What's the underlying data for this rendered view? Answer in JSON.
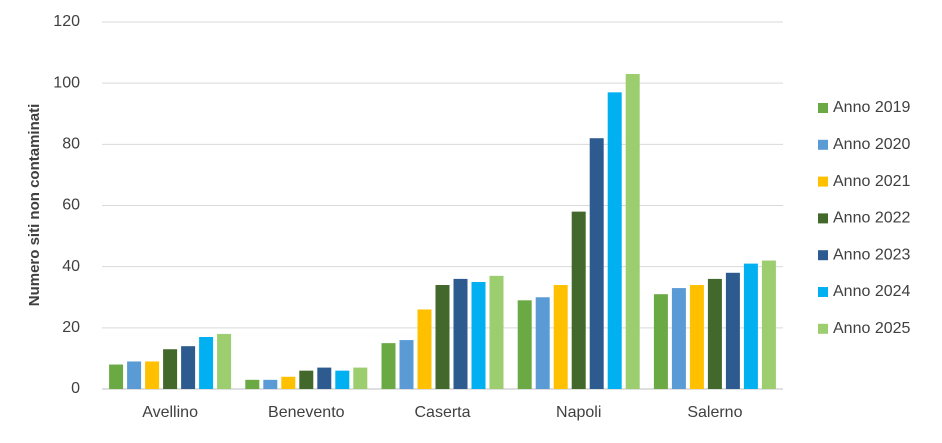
{
  "chart_data": {
    "type": "bar",
    "y_label": "Numero siti non contaminati",
    "categories": [
      "Avellino",
      "Benevento",
      "Caserta",
      "Napoli",
      "Salerno"
    ],
    "series": [
      {
        "name": "Anno 2019",
        "color": "#6ba944",
        "values": [
          8,
          3,
          15,
          29,
          31
        ]
      },
      {
        "name": "Anno 2020",
        "color": "#5b9bd5",
        "values": [
          9,
          3,
          16,
          30,
          33
        ]
      },
      {
        "name": "Anno 2021",
        "color": "#ffc000",
        "values": [
          9,
          4,
          26,
          34,
          34
        ]
      },
      {
        "name": "Anno 2022",
        "color": "#43682b",
        "values": [
          13,
          6,
          34,
          58,
          36
        ]
      },
      {
        "name": "Anno 2023",
        "color": "#2e5b8f",
        "values": [
          14,
          7,
          36,
          82,
          38
        ]
      },
      {
        "name": "Anno 2024",
        "color": "#00b0f0",
        "values": [
          17,
          6,
          35,
          97,
          41
        ]
      },
      {
        "name": "Anno 2025",
        "color": "#9ccd6e",
        "values": [
          18,
          7,
          37,
          103,
          42
        ]
      }
    ],
    "ylim": [
      0,
      120
    ],
    "yticks": [
      0,
      20,
      40,
      60,
      80,
      100,
      120
    ],
    "grid": true,
    "legend": "right"
  }
}
